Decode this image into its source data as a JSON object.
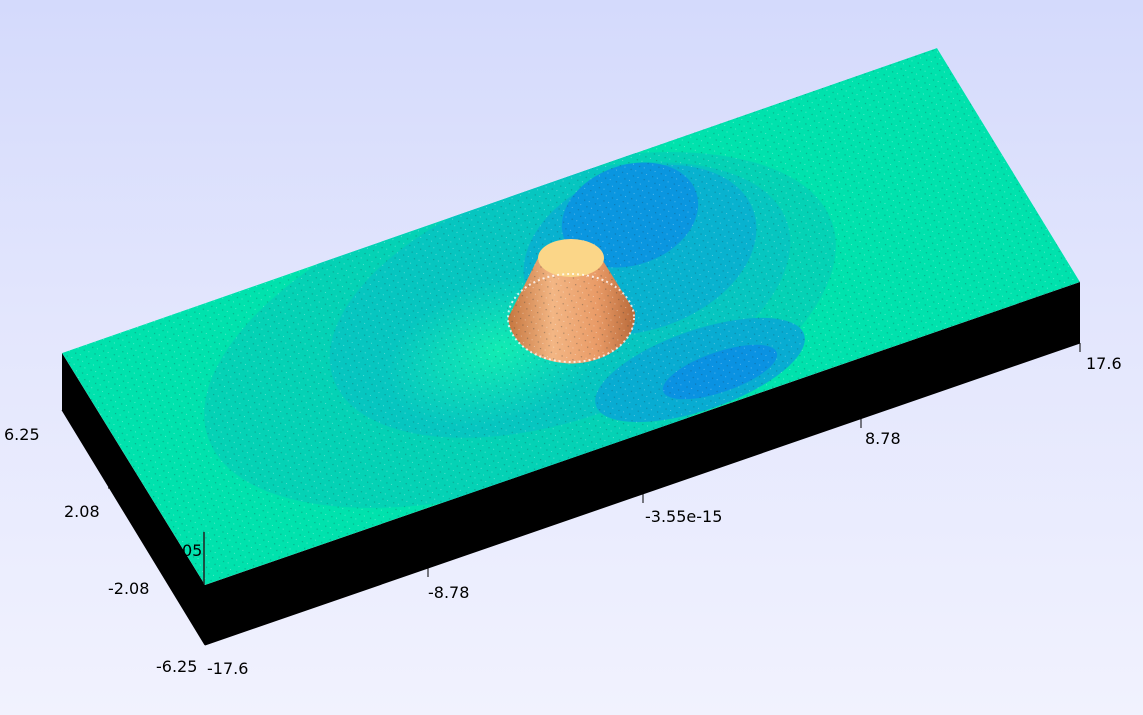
{
  "viewer": {
    "x_axis_ticks": [
      "-17.6",
      "-8.78",
      "-3.55e-15",
      "8.78",
      "17.6"
    ],
    "y_axis_ticks": [
      "6.25",
      "2.08",
      "-2.08",
      "-6.25"
    ],
    "z_axis_fragment": "05",
    "colormap": {
      "far_field": "#00e2ad",
      "mid_field": "#06c8bf",
      "low_field": "#0a96e0",
      "body_top": "#fbd688",
      "body_side": "#f0a876"
    },
    "background_top": "#d4dafc",
    "background_bottom": "#f1f2fe",
    "shadow_color": "#000000"
  }
}
